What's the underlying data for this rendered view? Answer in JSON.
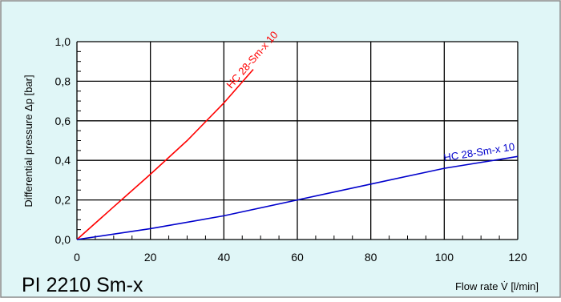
{
  "colors": {
    "background": "#e0f6f7",
    "frame": "#8a8a8a",
    "grid": "#000000",
    "axis_text": "#000000",
    "series_red": "#ff0000",
    "series_blue": "#0000cc"
  },
  "chart_data": {
    "type": "line",
    "title": "PI 2210 Sm-x",
    "xlabel": "Flow rate V̇ [l/min]",
    "ylabel": "Differential pressure Δp [bar]",
    "xlim": [
      0,
      120
    ],
    "ylim": [
      0,
      1.0
    ],
    "x_ticks": [
      "0",
      "20",
      "40",
      "60",
      "80",
      "100",
      "120"
    ],
    "y_ticks": [
      "0,0",
      "0,2",
      "0,4",
      "0,6",
      "0,8",
      "1,0"
    ],
    "grid": true,
    "series": [
      {
        "name": "HC 28-Sm-x 10",
        "color": "#ff0000",
        "x": [
          0,
          10,
          20,
          30,
          40,
          48
        ],
        "y": [
          0,
          0.165,
          0.33,
          0.5,
          0.69,
          0.86
        ]
      },
      {
        "name": "HC 28-Sm-x 10",
        "color": "#0000cc",
        "x": [
          0,
          20,
          40,
          60,
          80,
          100,
          120
        ],
        "y": [
          0,
          0.055,
          0.12,
          0.2,
          0.28,
          0.36,
          0.42
        ]
      }
    ]
  }
}
